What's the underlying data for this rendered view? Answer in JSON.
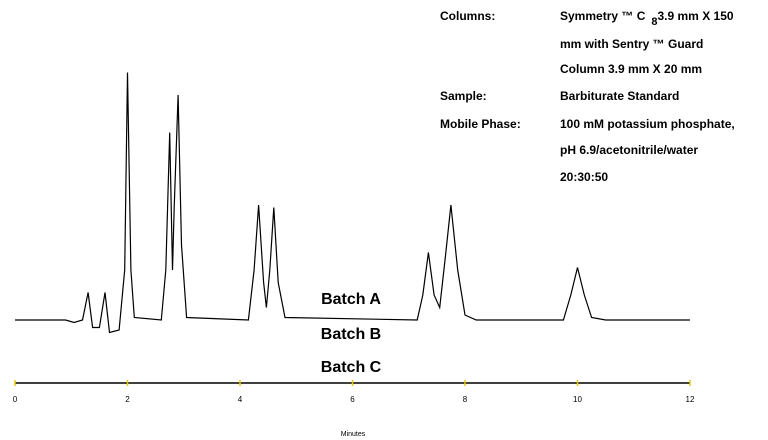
{
  "chart_data": {
    "type": "line",
    "x": [
      0,
      0.9,
      1.05,
      1.2,
      1.3,
      1.38,
      1.5,
      1.6,
      1.68,
      1.85,
      1.95,
      2.0,
      2.06,
      2.12,
      2.6,
      2.68,
      2.75,
      2.8,
      2.83,
      2.9,
      2.96,
      3.05,
      4.15,
      4.25,
      4.33,
      4.42,
      4.47,
      4.53,
      4.6,
      4.68,
      4.8,
      7.15,
      7.25,
      7.35,
      7.45,
      7.55,
      7.65,
      7.75,
      7.87,
      8.0,
      8.2,
      9.75,
      9.88,
      10.0,
      10.12,
      10.25,
      10.5,
      12
    ],
    "series": [
      {
        "color": "#000000",
        "values": [
          0,
          0,
          -1,
          0,
          11,
          -3,
          -3,
          11,
          -5,
          -4,
          20,
          99,
          20,
          1,
          0,
          20,
          75,
          20,
          45,
          90,
          30,
          1,
          0,
          20,
          46,
          15,
          5,
          20,
          45,
          15,
          1,
          0,
          10,
          27,
          10,
          5,
          25,
          46,
          20,
          2,
          0,
          0,
          10,
          21,
          10,
          1,
          0,
          0
        ]
      }
    ],
    "xlim": [
      0,
      12
    ],
    "xticks": [
      0,
      2,
      4,
      6,
      8,
      10,
      12
    ],
    "ylim": [
      -10,
      100
    ],
    "xlabel": "Minutes",
    "tick_color": "#e8c800",
    "batch_labels": [
      "Batch A",
      "Batch B",
      "Batch C"
    ],
    "info": [
      {
        "label": "Columns:",
        "lines": [
          {
            "text": "Symmetry ™ C",
            "subscript": "8",
            "rest": "3.9 mm X 150"
          },
          "mm with Sentry ™ Guard",
          " Column 3.9 mm X 20 mm"
        ]
      },
      {
        "label": "Sample:",
        "lines": [
          "Barbiturate Standard"
        ]
      },
      {
        "label": "Mobile Phase:",
        "lines": [
          "100 mM potassium phosphate,",
          "pH 6.9/acetonitrile/water",
          "20:30:50"
        ]
      }
    ]
  }
}
